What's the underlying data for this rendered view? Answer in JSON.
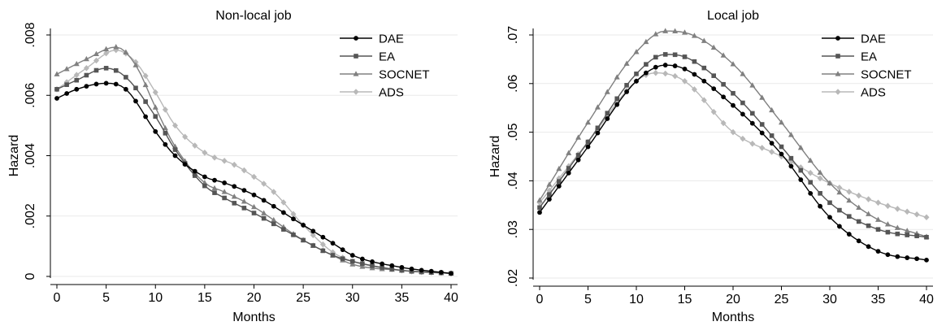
{
  "chart_data": [
    {
      "type": "line",
      "title": "Non-local job",
      "xlabel": "Months",
      "ylabel": "Hazard",
      "xlim": [
        0,
        40
      ],
      "ylim": [
        0,
        0.008
      ],
      "xticks": [
        0,
        5,
        10,
        15,
        20,
        25,
        30,
        35,
        40
      ],
      "yticks": [
        0,
        0.002,
        0.004,
        0.006,
        0.008
      ],
      "ytick_labels": [
        "0",
        ".002",
        ".004",
        ".006",
        ".008"
      ],
      "grid": "horizontal",
      "legend_position": "top-right",
      "series": [
        {
          "name": "DAE",
          "color": "#000000",
          "marker": "circle",
          "points": [
            [
              0,
              0.0059
            ],
            [
              2,
              0.0062
            ],
            [
              5,
              0.0064
            ],
            [
              7,
              0.0062
            ],
            [
              10,
              0.0048
            ],
            [
              12,
              0.004
            ],
            [
              15,
              0.0033
            ],
            [
              17,
              0.0031
            ],
            [
              20,
              0.0027
            ],
            [
              25,
              0.0017
            ],
            [
              28,
              0.0011
            ],
            [
              30,
              0.0007
            ],
            [
              35,
              0.0003
            ],
            [
              40,
              0.0001
            ]
          ]
        },
        {
          "name": "EA",
          "color": "#555555",
          "marker": "square",
          "points": [
            [
              0,
              0.0062
            ],
            [
              2,
              0.0065
            ],
            [
              5,
              0.0069
            ],
            [
              7,
              0.0066
            ],
            [
              10,
              0.0053
            ],
            [
              12,
              0.0042
            ],
            [
              15,
              0.003
            ],
            [
              17,
              0.0026
            ],
            [
              20,
              0.0021
            ],
            [
              25,
              0.0012
            ],
            [
              28,
              0.0007
            ],
            [
              30,
              0.0005
            ],
            [
              35,
              0.0002
            ],
            [
              40,
              0.0001
            ]
          ]
        },
        {
          "name": "SOCNET",
          "color": "#808080",
          "marker": "triangle",
          "points": [
            [
              0,
              0.0067
            ],
            [
              3,
              0.0072
            ],
            [
              6,
              0.0076
            ],
            [
              8,
              0.007
            ],
            [
              10,
              0.0056
            ],
            [
              12,
              0.0043
            ],
            [
              15,
              0.0031
            ],
            [
              17,
              0.0028
            ],
            [
              20,
              0.0023
            ],
            [
              25,
              0.0012
            ],
            [
              28,
              0.0007
            ],
            [
              30,
              0.0004
            ],
            [
              35,
              0.0002
            ],
            [
              40,
              0.0001
            ]
          ]
        },
        {
          "name": "ADS",
          "color": "#b8b8b8",
          "marker": "diamond",
          "points": [
            [
              0,
              0.0062
            ],
            [
              3,
              0.0069
            ],
            [
              6,
              0.0075
            ],
            [
              8,
              0.0071
            ],
            [
              10,
              0.0061
            ],
            [
              12,
              0.005
            ],
            [
              15,
              0.0041
            ],
            [
              18,
              0.0037
            ],
            [
              20,
              0.0033
            ],
            [
              22,
              0.0028
            ],
            [
              25,
              0.0017
            ],
            [
              28,
              0.0008
            ],
            [
              30,
              0.0005
            ],
            [
              35,
              0.0002
            ],
            [
              40,
              0.0001
            ]
          ]
        }
      ]
    },
    {
      "type": "line",
      "title": "Local job",
      "xlabel": "Months",
      "ylabel": "Hazard",
      "xlim": [
        0,
        40
      ],
      "ylim": [
        0.02,
        0.07
      ],
      "xticks": [
        0,
        5,
        10,
        15,
        20,
        25,
        30,
        35,
        40
      ],
      "yticks": [
        0.02,
        0.03,
        0.04,
        0.05,
        0.06,
        0.07
      ],
      "ytick_labels": [
        ".02",
        ".03",
        ".04",
        ".05",
        ".06",
        ".07"
      ],
      "grid": "horizontal",
      "legend_position": "top-right",
      "series": [
        {
          "name": "DAE",
          "color": "#000000",
          "marker": "circle",
          "points": [
            [
              0,
              0.0335
            ],
            [
              5,
              0.047
            ],
            [
              10,
              0.0605
            ],
            [
              13,
              0.0638
            ],
            [
              15,
              0.063
            ],
            [
              20,
              0.0555
            ],
            [
              25,
              0.0455
            ],
            [
              30,
              0.0325
            ],
            [
              35,
              0.0255
            ],
            [
              40,
              0.0237
            ]
          ]
        },
        {
          "name": "EA",
          "color": "#555555",
          "marker": "square",
          "points": [
            [
              0,
              0.0345
            ],
            [
              5,
              0.048
            ],
            [
              10,
              0.062
            ],
            [
              13,
              0.066
            ],
            [
              15,
              0.0655
            ],
            [
              20,
              0.058
            ],
            [
              25,
              0.047
            ],
            [
              30,
              0.0355
            ],
            [
              35,
              0.03
            ],
            [
              40,
              0.0284
            ]
          ]
        },
        {
          "name": "SOCNET",
          "color": "#808080",
          "marker": "triangle",
          "points": [
            [
              0,
              0.036
            ],
            [
              5,
              0.052
            ],
            [
              10,
              0.0665
            ],
            [
              13,
              0.0708
            ],
            [
              15,
              0.0705
            ],
            [
              20,
              0.064
            ],
            [
              25,
              0.052
            ],
            [
              30,
              0.0395
            ],
            [
              35,
              0.032
            ],
            [
              40,
              0.0285
            ]
          ]
        },
        {
          "name": "ADS",
          "color": "#b8b8b8",
          "marker": "diamond",
          "points": [
            [
              0,
              0.0355
            ],
            [
              5,
              0.048
            ],
            [
              10,
              0.0605
            ],
            [
              12,
              0.0622
            ],
            [
              15,
              0.0605
            ],
            [
              20,
              0.05
            ],
            [
              25,
              0.045
            ],
            [
              30,
              0.0395
            ],
            [
              35,
              0.0355
            ],
            [
              40,
              0.0325
            ]
          ]
        }
      ]
    }
  ]
}
